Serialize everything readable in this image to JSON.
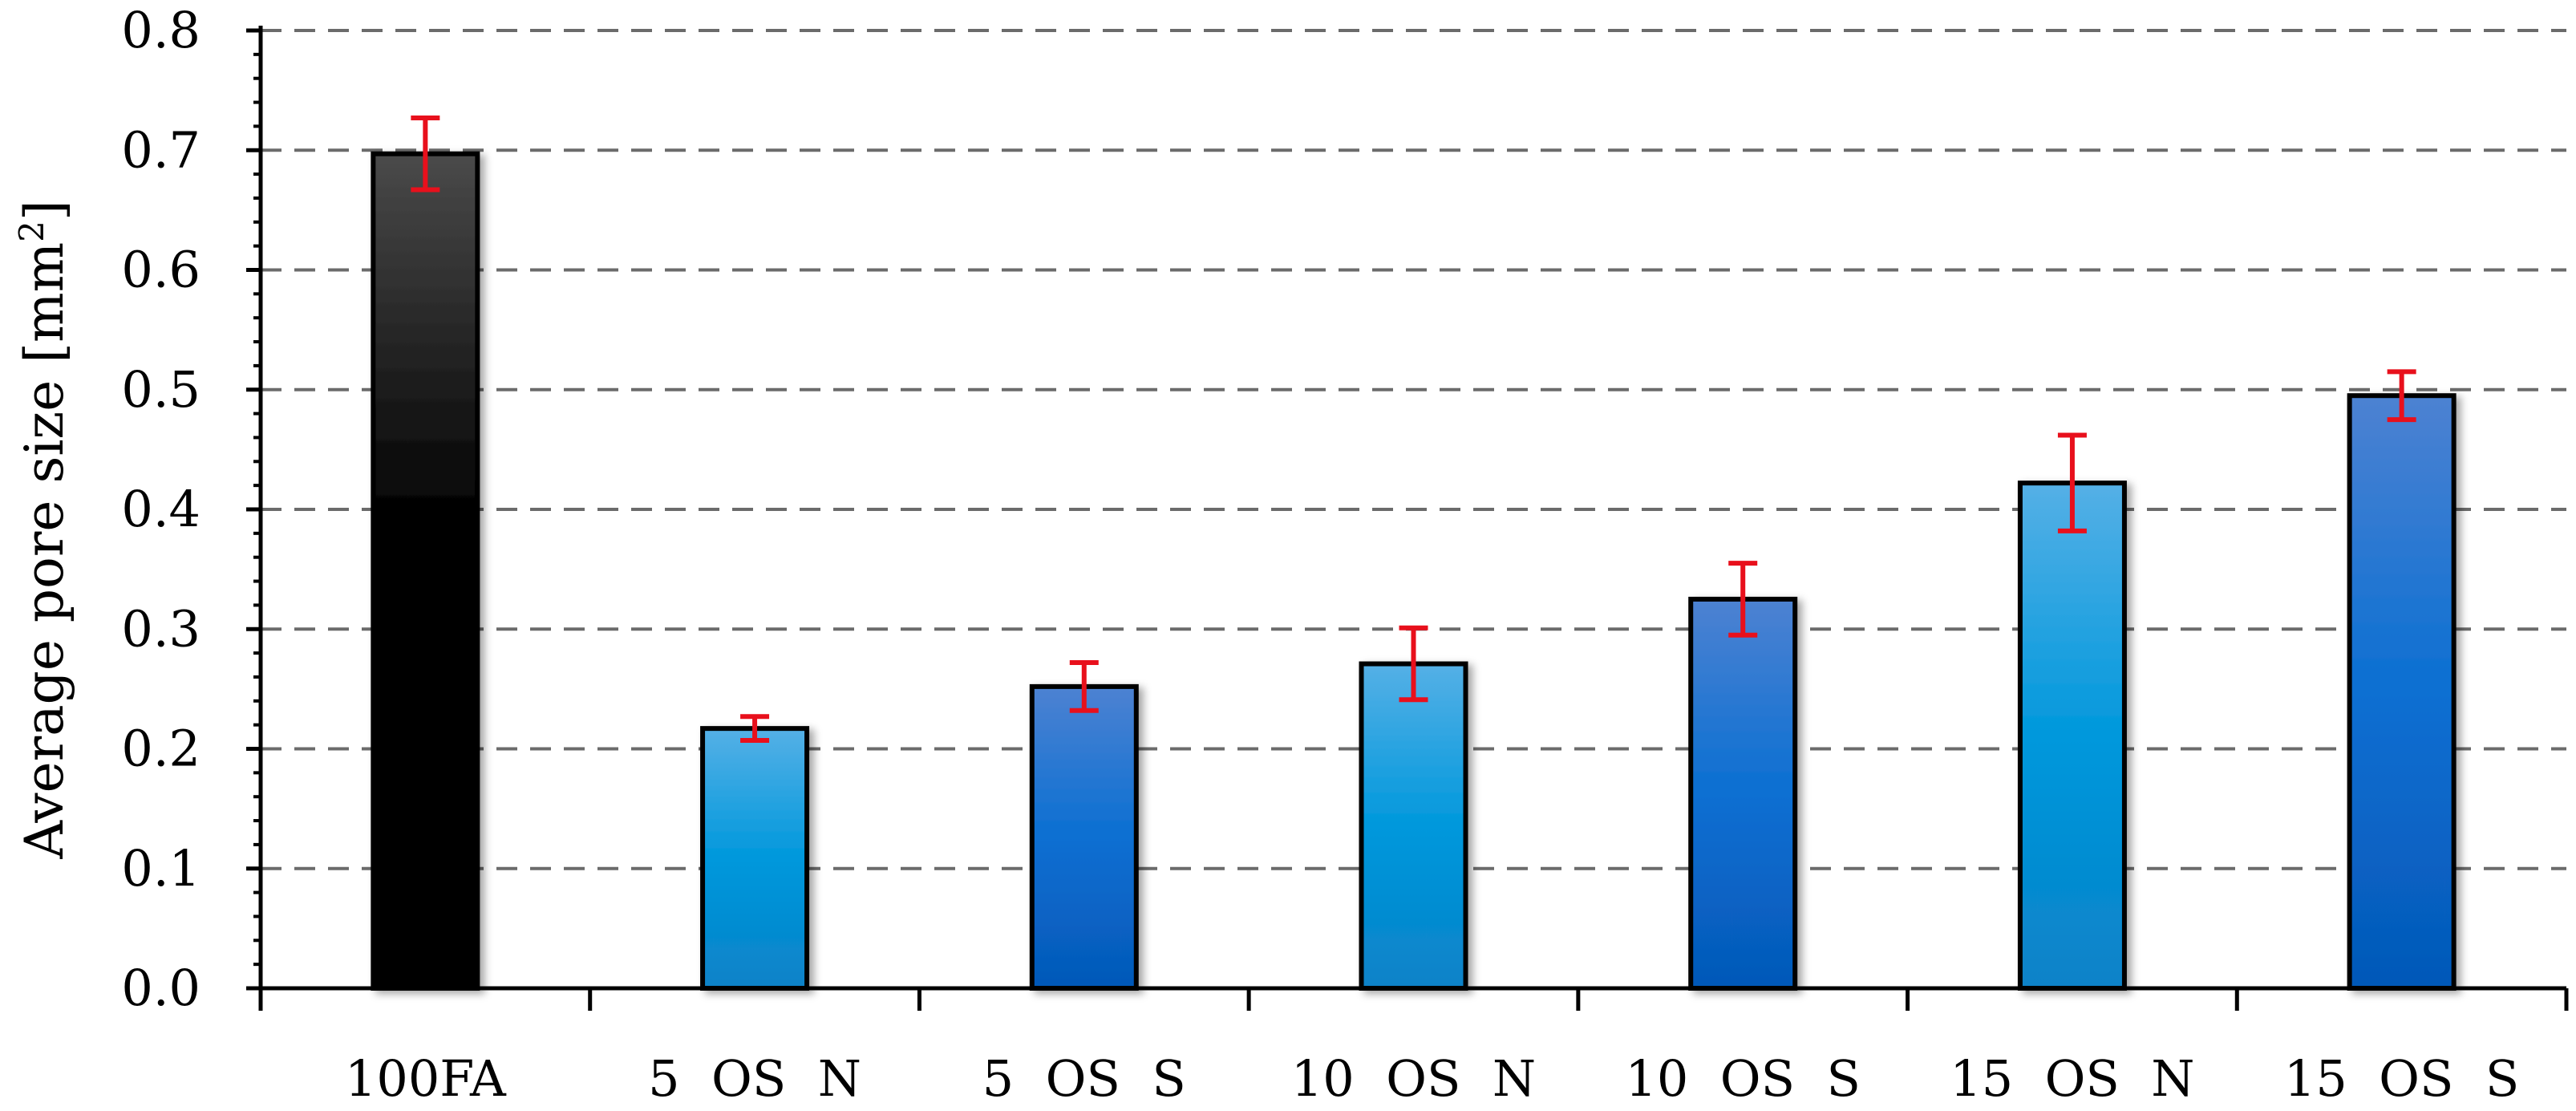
{
  "chart_data": {
    "type": "bar",
    "title": "",
    "xlabel": "",
    "ylabel": {
      "main": "Average pore size [mm",
      "superscript": "2",
      "close": "]"
    },
    "ylim": [
      0,
      0.8
    ],
    "yticks": [
      "0.0",
      "0.1",
      "0.2",
      "0.3",
      "0.4",
      "0.5",
      "0.6",
      "0.7",
      "0.8"
    ],
    "grid": true,
    "categories": [
      "100FA",
      "5  OS  N",
      "5  OS  S",
      "10  OS  N",
      "10  OS  S",
      "15  OS  N",
      "15  OS  S"
    ],
    "values": [
      0.697,
      0.217,
      0.252,
      0.271,
      0.325,
      0.422,
      0.495
    ],
    "errors": [
      0.03,
      0.01,
      0.02,
      0.03,
      0.03,
      0.04,
      0.02
    ],
    "colors": {
      "bar_100FA_top": "#404040",
      "bar_100FA_bottom": "#000000",
      "bar_N_top": "#4faee6",
      "bar_N_mid": "#0096da",
      "bar_N_bottom": "#0780c8",
      "bar_S_top": "#4a7fd0",
      "bar_S_mid": "#0a6fd0",
      "bar_S_bottom": "#0558b8",
      "error": "#e8101c",
      "grid": "#6b6b6b",
      "axis": "#000000"
    },
    "bar_styles": [
      "dark",
      "light",
      "medium",
      "light",
      "medium",
      "light",
      "medium"
    ]
  }
}
